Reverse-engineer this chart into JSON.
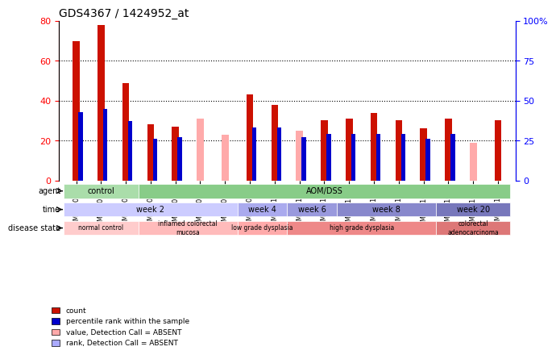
{
  "title": "GDS4367 / 1424952_at",
  "samples": [
    "GSM770092",
    "GSM770093",
    "GSM770094",
    "GSM770095",
    "GSM770096",
    "GSM770097",
    "GSM770098",
    "GSM770099",
    "GSM770100",
    "GSM770101",
    "GSM770102",
    "GSM770103",
    "GSM770104",
    "GSM770105",
    "GSM770106",
    "GSM770107",
    "GSM770108",
    "GSM770109"
  ],
  "count_values": [
    70,
    78,
    49,
    28,
    27,
    0,
    0,
    43,
    38,
    0,
    30,
    31,
    34,
    30,
    26,
    31,
    0,
    30
  ],
  "percentile_values": [
    43,
    45,
    37,
    26,
    27,
    0,
    0,
    33,
    33,
    27,
    29,
    29,
    29,
    29,
    26,
    29,
    0,
    0
  ],
  "absent_value_values": [
    0,
    0,
    0,
    0,
    0,
    31,
    23,
    0,
    0,
    25,
    0,
    0,
    0,
    0,
    0,
    0,
    19,
    0
  ],
  "absent_rank_values": [
    0,
    0,
    0,
    0,
    0,
    0,
    0,
    0,
    0,
    0,
    0,
    0,
    0,
    0,
    0,
    0,
    0,
    0
  ],
  "ylim_left": [
    0,
    80
  ],
  "ylim_right": [
    0,
    100
  ],
  "yticks_left": [
    0,
    20,
    40,
    60,
    80
  ],
  "yticks_right": [
    0,
    25,
    50,
    75,
    100
  ],
  "bar_width": 0.35,
  "color_count": "#cc1100",
  "color_percentile": "#0000cc",
  "color_absent_value": "#ffaaaa",
  "color_absent_rank": "#aaaaff",
  "agent_groups": [
    {
      "label": "control",
      "start": 0,
      "end": 3,
      "color": "#aaddaa"
    },
    {
      "label": "AOM/DSS",
      "start": 3,
      "end": 18,
      "color": "#88cc88"
    }
  ],
  "time_groups": [
    {
      "label": "week 2",
      "start": 0,
      "end": 7,
      "color": "#ccccff"
    },
    {
      "label": "week 4",
      "start": 7,
      "end": 9,
      "color": "#aaaaee"
    },
    {
      "label": "week 6",
      "start": 9,
      "end": 11,
      "color": "#9999dd"
    },
    {
      "label": "week 8",
      "start": 11,
      "end": 15,
      "color": "#8888cc"
    },
    {
      "label": "week 20",
      "start": 15,
      "end": 18,
      "color": "#7777bb"
    }
  ],
  "disease_groups": [
    {
      "label": "normal control",
      "start": 0,
      "end": 3,
      "color": "#ffcccc"
    },
    {
      "label": "inflamed colorectal\nmucosa",
      "start": 3,
      "end": 7,
      "color": "#ffbbbb"
    },
    {
      "label": "low grade dysplasia",
      "start": 7,
      "end": 9,
      "color": "#ffaaaa"
    },
    {
      "label": "high grade dysplasia",
      "start": 9,
      "end": 15,
      "color": "#ee8888"
    },
    {
      "label": "colorectal\nadenocarcinoma",
      "start": 15,
      "end": 18,
      "color": "#dd7777"
    }
  ],
  "legend_items": [
    {
      "label": "count",
      "color": "#cc1100",
      "marker": "s"
    },
    {
      "label": "percentile rank within the sample",
      "color": "#0000cc",
      "marker": "s"
    },
    {
      "label": "value, Detection Call = ABSENT",
      "color": "#ffaaaa",
      "marker": "s"
    },
    {
      "label": "rank, Detection Call = ABSENT",
      "color": "#aaaaff",
      "marker": "s"
    }
  ]
}
